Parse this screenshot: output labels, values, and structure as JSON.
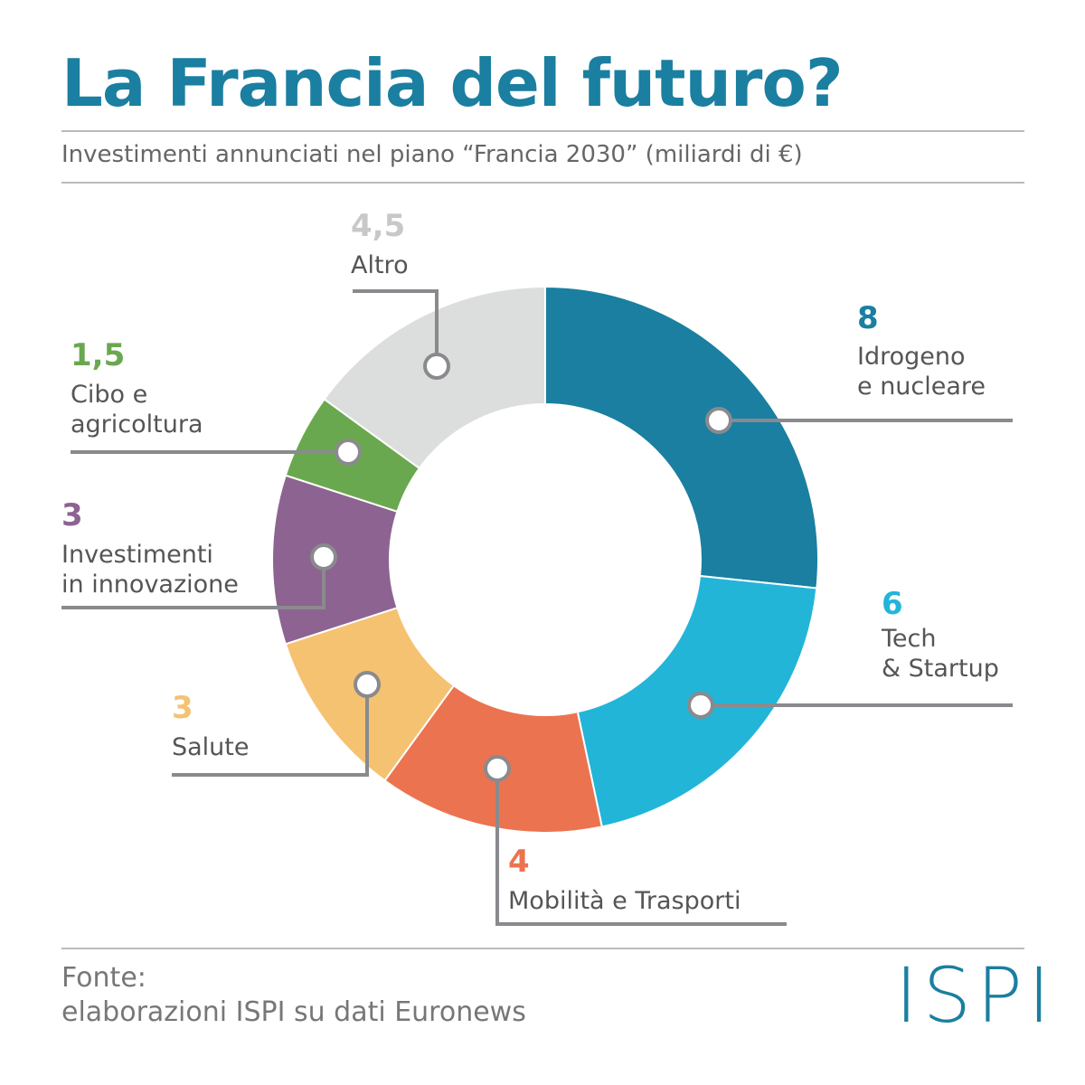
{
  "chart_data": {
    "type": "donut",
    "title": "La Francia del futuro?",
    "subtitle": "Investimenti annunciati nel piano “Francia 2030” (miliardi di €)",
    "categories": [
      "Idrogeno\ne nucleare",
      "Tech\n& Startup",
      "Mobilità e Trasporti",
      "Salute",
      "Investimenti\nin innovazione",
      "Cibo e\nagricoltura",
      "Altro"
    ],
    "values": [
      8,
      6,
      4,
      3,
      3,
      1.5,
      4.5
    ],
    "value_labels": [
      "8",
      "6",
      "4",
      "3",
      "3",
      "1,5",
      "4,5"
    ],
    "colors": [
      "#1a7fa0",
      "#22b5d8",
      "#ec7350",
      "#f5c272",
      "#8d6391",
      "#6aa84f",
      "#dcdddd"
    ],
    "source_label": "Fonte:",
    "source": "elaborazioni ISPI su dati Euronews",
    "logo": "ISPI"
  }
}
